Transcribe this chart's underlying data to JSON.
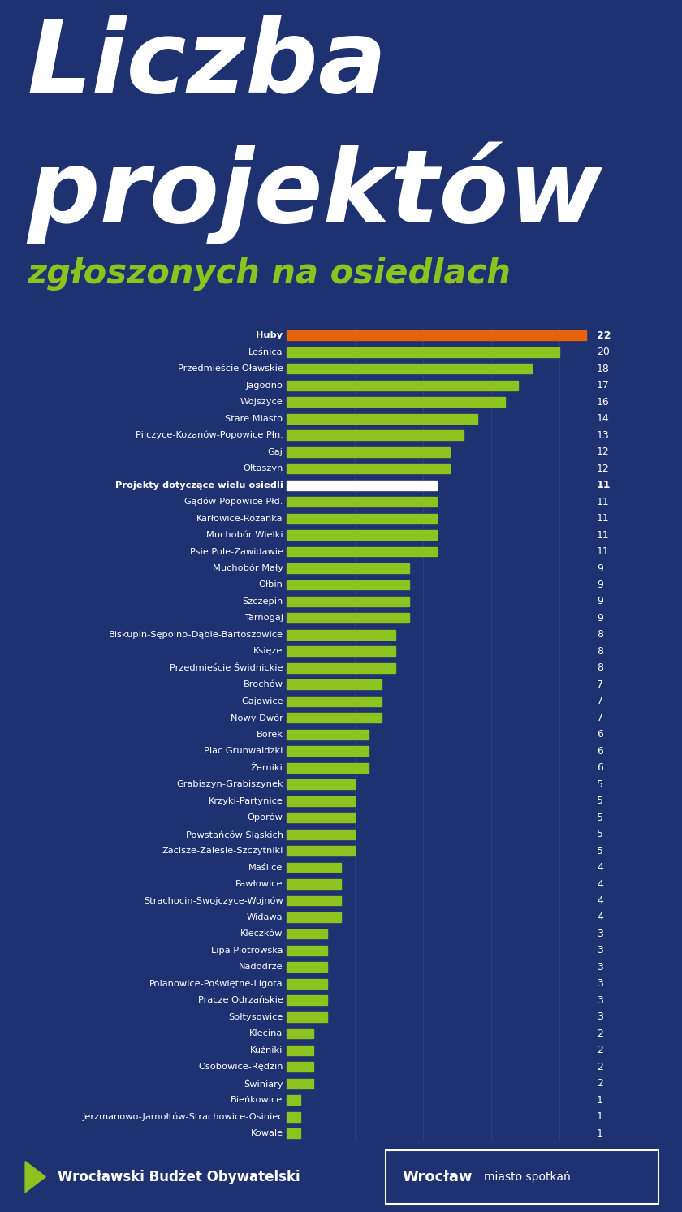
{
  "title_line1": "Liczba",
  "title_line2": "projektów",
  "subtitle": "zgłoszonych na osiedlach",
  "bg_color": "#1e3170",
  "bar_color_green": "#8dc21f",
  "bar_color_orange": "#e8620a",
  "bar_color_white": "#ffffff",
  "text_color_white": "#ffffff",
  "text_color_green": "#8dc21f",
  "categories": [
    "Huby",
    "Leśnica",
    "Przedmieście Oławskie",
    "Jagodno",
    "Wojszyce",
    "Stare Miasto",
    "Pilczyce-Kozanów-Popowice Płn.",
    "Gaj",
    "Ołtaszyn",
    "Projekty dotyczące wielu osiedli",
    "Gądów-Popowice Płd.",
    "Karłowice-Różanka",
    "Muchobór Wielki",
    "Psie Pole-Zawidawie",
    "Muchobór Mały",
    "Ołbin",
    "Szczepin",
    "Tarnogaj",
    "Biskupin-Sępolno-Dąbie-Bartoszowice",
    "Księże",
    "Przedmieście Świdnickie",
    "Brochów",
    "Gajowice",
    "Nowy Dwór",
    "Borek",
    "Plac Grunwaldzki",
    "Żerniki",
    "Grabiszyn-Grabiszynek",
    "Krzyki-Partynice",
    "Oporów",
    "Powstańców Śląskich",
    "Zacisze-Zalesie-Szczytniki",
    "Maślice",
    "Pawłowice",
    "Strachocin-Swojczyce-Wojnów",
    "Widawa",
    "Kleczków",
    "Lipa Piotrowska",
    "Nadodrze",
    "Polanowice-Poświętne-Ligota",
    "Pracze Odrzańskie",
    "Sołtysowice",
    "Klecina",
    "Kuźniki",
    "Osobowice-Rędzin",
    "Świniary",
    "Bieńkowice",
    "Jerzmanowo-Jarnołtów-Strachowice-Osiniec",
    "Kowale"
  ],
  "values": [
    22,
    20,
    18,
    17,
    16,
    14,
    13,
    12,
    12,
    11,
    11,
    11,
    11,
    11,
    9,
    9,
    9,
    9,
    8,
    8,
    8,
    7,
    7,
    7,
    6,
    6,
    6,
    5,
    5,
    5,
    5,
    5,
    4,
    4,
    4,
    4,
    3,
    3,
    3,
    3,
    3,
    3,
    2,
    2,
    2,
    2,
    1,
    1,
    1
  ],
  "bold_items": [
    "Huby",
    "Projekty dotyczące wielu osiedli"
  ],
  "special_colors": {
    "Huby": "#e8620a",
    "Projekty dotyczące wielu osiedli": "#ffffff"
  },
  "footer_text1": "Wrocławski Budżet Obywatelski",
  "footer_text2": "Wrocław",
  "footer_text3": "miasto spotkań",
  "max_value": 22,
  "title_fontsize": 90,
  "subtitle_fontsize": 30,
  "label_fontsize": 8.2,
  "value_fontsize": 9.0
}
